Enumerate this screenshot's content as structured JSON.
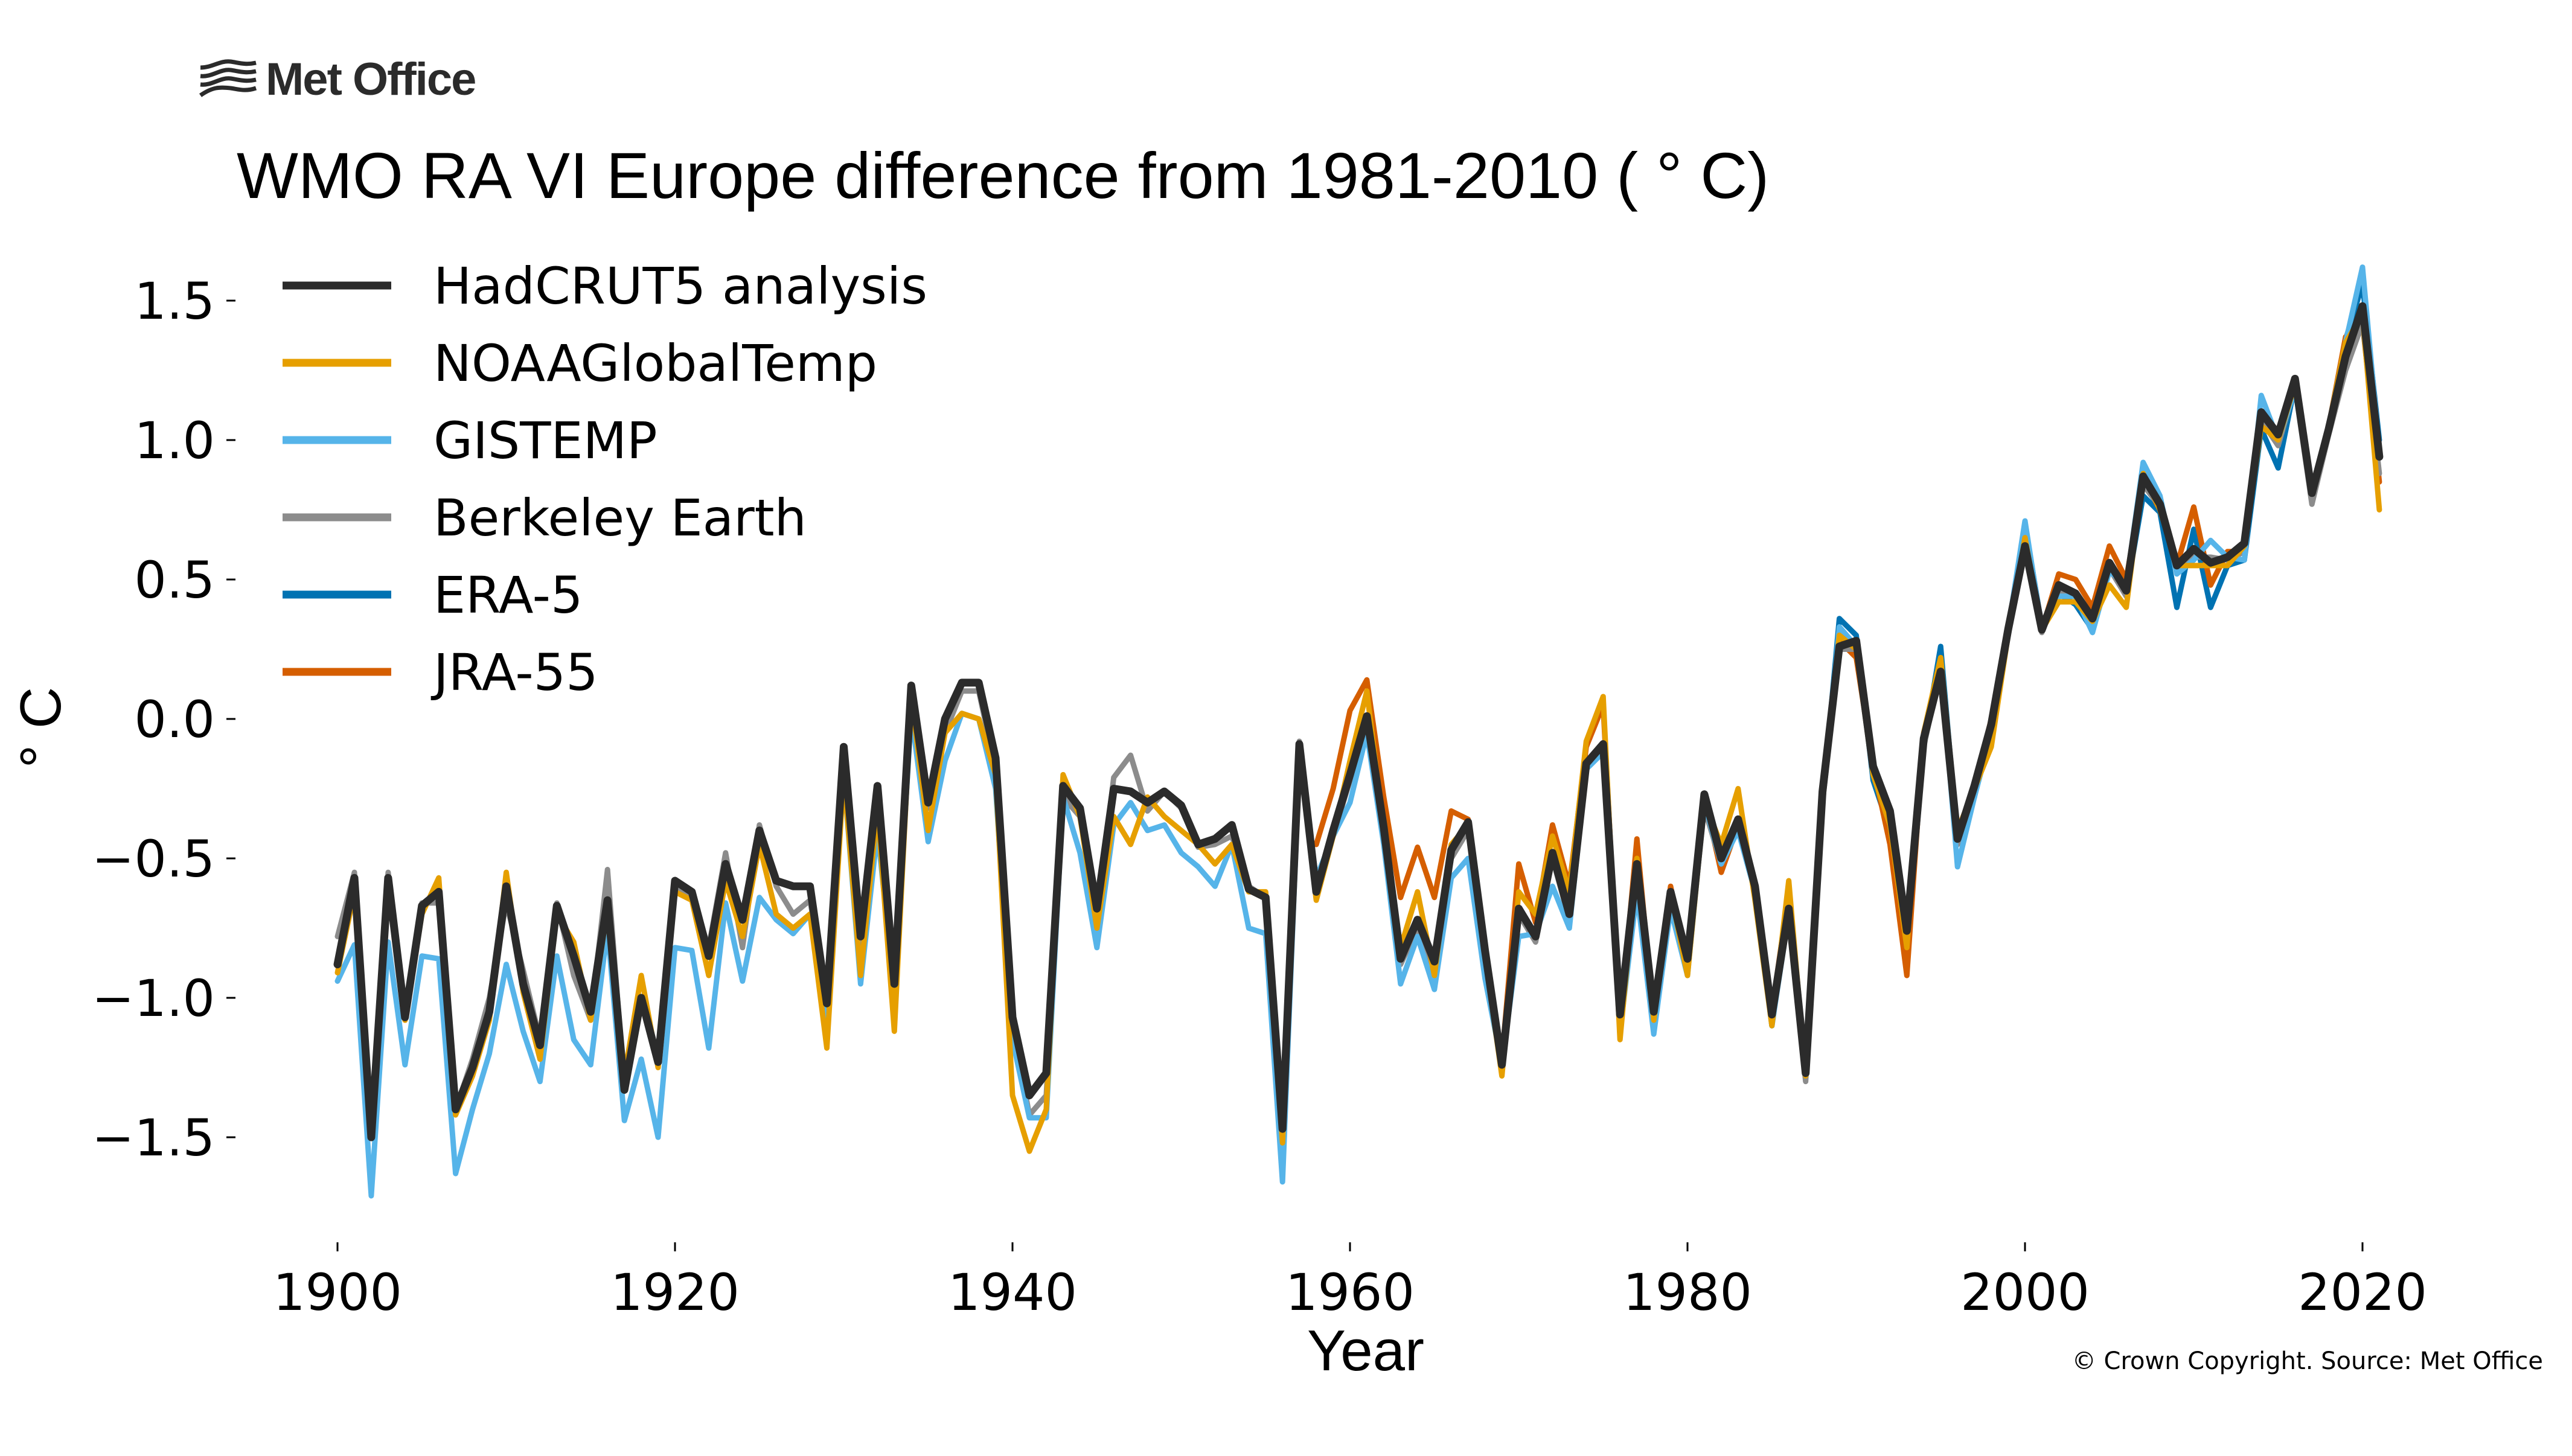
{
  "header": {
    "logo_text": "Met Office",
    "logo_icon": "met-office-waves-icon"
  },
  "footer": {
    "copyright": "© Crown Copyright. Source: Met Office"
  },
  "chart_data": {
    "type": "line",
    "title": "WMO RA VI Europe difference from 1981-2010 ( ° C)",
    "xlabel": "Year",
    "ylabel": "° C",
    "xlim": [
      1894,
      2028
    ],
    "ylim": [
      -1.85,
      1.75
    ],
    "x_ticks": [
      1900,
      1920,
      1940,
      1960,
      1980,
      2000,
      2020
    ],
    "x_tick_labels": [
      "1900",
      "1920",
      "1940",
      "1960",
      "1980",
      "2000",
      "2020"
    ],
    "y_ticks": [
      1.5,
      1.0,
      0.5,
      0.0,
      -0.5,
      -1.0,
      -1.5
    ],
    "y_tick_labels": [
      "1.5",
      "1.0",
      "0.5",
      "0.0",
      "−0.5",
      "−1.0",
      "−1.5"
    ],
    "grid": false,
    "legend_position": "top-left",
    "series": [
      {
        "name": "HadCRUT5 analysis",
        "color": "#2b2b2b",
        "start_year": 1900,
        "values": [
          -0.88,
          -0.57,
          -1.5,
          -0.57,
          -1.07,
          -0.67,
          -0.62,
          -1.4,
          -1.25,
          -1.05,
          -0.6,
          -0.95,
          -1.17,
          -0.67,
          -0.85,
          -1.05,
          -0.65,
          -1.33,
          -1.0,
          -1.23,
          -0.58,
          -0.62,
          -0.85,
          -0.52,
          -0.72,
          -0.4,
          -0.58,
          -0.6,
          -0.6,
          -1.02,
          -0.1,
          -0.78,
          -0.24,
          -0.95,
          0.12,
          -0.3,
          0.0,
          0.13,
          0.13,
          -0.14,
          -1.07,
          -1.35,
          -1.27,
          -0.24,
          -0.32,
          -0.68,
          -0.25,
          -0.26,
          -0.3,
          -0.26,
          -0.31,
          -0.45,
          -0.43,
          -0.38,
          -0.61,
          -0.64,
          -1.47,
          -0.09,
          -0.62,
          -0.4,
          -0.2,
          0.01,
          -0.39,
          -0.86,
          -0.72,
          -0.87,
          -0.47,
          -0.37,
          -0.83,
          -1.24,
          -0.68,
          -0.78,
          -0.48,
          -0.7,
          -0.16,
          -0.09,
          -1.06,
          -0.52,
          -1.05,
          -0.62,
          -0.86,
          -0.27,
          -0.5,
          -0.36,
          -0.6,
          -1.06,
          -0.68,
          -1.27,
          -0.26,
          0.26,
          0.28,
          -0.17,
          -0.33,
          -0.76,
          -0.07,
          0.17,
          -0.43,
          -0.24,
          -0.02,
          0.32,
          0.62,
          0.32,
          0.48,
          0.45,
          0.36,
          0.56,
          0.46,
          0.87,
          0.77,
          0.55,
          0.61,
          0.56,
          0.58,
          0.63,
          1.1,
          1.02,
          1.22,
          0.81,
          1.04,
          1.3,
          1.48,
          0.94
        ]
      },
      {
        "name": "NOAAGlobalTemp",
        "color": "#e69f00",
        "start_year": 1900,
        "values": [
          -0.91,
          -0.62,
          -1.48,
          -0.6,
          -1.08,
          -0.7,
          -0.57,
          -1.42,
          -1.28,
          -1.08,
          -0.55,
          -0.98,
          -1.22,
          -0.7,
          -0.8,
          -1.08,
          -0.68,
          -1.28,
          -0.92,
          -1.25,
          -0.62,
          -0.65,
          -0.92,
          -0.58,
          -0.78,
          -0.45,
          -0.7,
          -0.75,
          -0.7,
          -1.18,
          -0.2,
          -0.92,
          -0.32,
          -1.12,
          0.08,
          -0.4,
          -0.05,
          0.02,
          0.0,
          -0.2,
          -1.35,
          -1.55,
          -1.4,
          -0.2,
          -0.35,
          -0.75,
          -0.35,
          -0.45,
          -0.28,
          -0.35,
          -0.4,
          -0.45,
          -0.52,
          -0.45,
          -0.62,
          -0.62,
          -1.52,
          -0.12,
          -0.65,
          -0.42,
          -0.15,
          0.1,
          -0.4,
          -0.82,
          -0.62,
          -0.92,
          -0.45,
          -0.38,
          -0.85,
          -1.28,
          -0.62,
          -0.7,
          -0.42,
          -0.62,
          -0.08,
          0.08,
          -1.15,
          -0.5,
          -1.08,
          -0.62,
          -0.92,
          -0.3,
          -0.45,
          -0.25,
          -0.65,
          -1.1,
          -0.58,
          -1.28,
          -0.3,
          0.3,
          0.25,
          -0.2,
          -0.38,
          -0.82,
          -0.05,
          0.22,
          -0.4,
          -0.25,
          -0.1,
          0.3,
          0.65,
          0.32,
          0.42,
          0.42,
          0.35,
          0.48,
          0.4,
          0.88,
          0.75,
          0.55,
          0.55,
          0.55,
          0.55,
          0.62,
          1.05,
          1.0,
          1.2,
          0.82,
          1.05,
          1.35,
          1.45,
          0.75
        ]
      },
      {
        "name": "GISTEMP",
        "color": "#56b4e9",
        "start_year": 1900,
        "values": [
          -0.94,
          -0.81,
          -1.71,
          -0.8,
          -1.24,
          -0.85,
          -0.86,
          -1.63,
          -1.4,
          -1.2,
          -0.88,
          -1.12,
          -1.3,
          -0.85,
          -1.15,
          -1.24,
          -0.75,
          -1.44,
          -1.22,
          -1.5,
          -0.82,
          -0.83,
          -1.18,
          -0.66,
          -0.94,
          -0.64,
          -0.72,
          -0.77,
          -0.7,
          -1.08,
          -0.2,
          -0.95,
          -0.4,
          -0.98,
          0.02,
          -0.44,
          -0.15,
          0.02,
          0.0,
          -0.25,
          -1.15,
          -1.43,
          -1.43,
          -0.28,
          -0.48,
          -0.82,
          -0.38,
          -0.3,
          -0.4,
          -0.38,
          -0.48,
          -0.53,
          -0.6,
          -0.45,
          -0.75,
          -0.77,
          -1.66,
          -0.15,
          -0.57,
          -0.42,
          -0.3,
          -0.05,
          -0.45,
          -0.95,
          -0.78,
          -0.97,
          -0.57,
          -0.5,
          -0.93,
          -1.24,
          -0.78,
          -0.77,
          -0.6,
          -0.75,
          -0.18,
          -0.12,
          -1.12,
          -0.62,
          -1.13,
          -0.68,
          -0.92,
          -0.3,
          -0.52,
          -0.4,
          -0.62,
          -1.1,
          -0.7,
          -1.25,
          -0.3,
          0.33,
          0.26,
          -0.2,
          -0.38,
          -0.8,
          -0.06,
          0.2,
          -0.53,
          -0.28,
          -0.05,
          0.32,
          0.71,
          0.32,
          0.44,
          0.44,
          0.31,
          0.53,
          0.48,
          0.92,
          0.8,
          0.52,
          0.57,
          0.64,
          0.58,
          0.57,
          1.16,
          1.0,
          1.18,
          0.82,
          1.05,
          1.35,
          1.62,
          0.96
        ]
      },
      {
        "name": "Berkeley Earth",
        "color": "#8c8c8c",
        "start_year": 1900,
        "values": [
          -0.78,
          -0.55,
          -1.5,
          -0.55,
          -1.08,
          -0.66,
          -0.66,
          -1.4,
          -1.22,
          -1.0,
          -0.66,
          -0.9,
          -1.15,
          -0.66,
          -0.92,
          -1.08,
          -0.54,
          -1.32,
          -1.0,
          -1.22,
          -0.6,
          -0.64,
          -0.82,
          -0.48,
          -0.82,
          -0.38,
          -0.6,
          -0.7,
          -0.65,
          -1.0,
          -0.12,
          -0.85,
          -0.28,
          -0.92,
          0.08,
          -0.32,
          -0.05,
          0.1,
          0.1,
          -0.18,
          -1.1,
          -1.42,
          -1.35,
          -0.28,
          -0.35,
          -0.7,
          -0.21,
          -0.13,
          -0.33,
          -0.26,
          -0.32,
          -0.46,
          -0.45,
          -0.42,
          -0.6,
          -0.64,
          -1.45,
          -0.08,
          -0.6,
          -0.42,
          -0.22,
          -0.02,
          -0.42,
          -0.88,
          -0.75,
          -0.9,
          -0.5,
          -0.4,
          -0.85,
          -1.26,
          -0.7,
          -0.8,
          -0.5,
          -0.72,
          -0.18,
          -0.1,
          -1.08,
          -0.55,
          -1.07,
          -0.65,
          -0.88,
          -0.32,
          -0.52,
          -0.38,
          -0.62,
          -1.08,
          -0.7,
          -1.3,
          -0.3,
          0.25,
          0.25,
          -0.2,
          -0.36,
          -0.78,
          -0.1,
          0.18,
          -0.45,
          -0.27,
          -0.05,
          0.3,
          0.6,
          0.31,
          0.46,
          0.44,
          0.34,
          0.54,
          0.44,
          0.84,
          0.76,
          0.54,
          0.58,
          0.58,
          0.57,
          0.6,
          1.07,
          0.98,
          1.19,
          0.77,
          1.02,
          1.25,
          1.42,
          0.88
        ]
      },
      {
        "name": "ERA-5",
        "color": "#0072b2",
        "start_year": 1979,
        "values": [
          -0.62,
          -0.9,
          -0.27,
          -0.52,
          -0.38,
          -0.6,
          -1.1,
          -0.68,
          -1.25,
          -0.3,
          0.36,
          0.3,
          -0.22,
          -0.4,
          -0.83,
          -0.1,
          0.26,
          -0.43,
          -0.28,
          0.0,
          0.32,
          0.7,
          0.33,
          0.45,
          0.41,
          0.32,
          0.55,
          0.45,
          0.8,
          0.74,
          0.4,
          0.68,
          0.4,
          0.55,
          0.57,
          1.04,
          0.9,
          1.2,
          0.8,
          1.05,
          1.36,
          1.56,
          1.0
        ]
      },
      {
        "name": "JRA-55",
        "color": "#d55e00",
        "start_year": 1958,
        "values": [
          -0.45,
          -0.25,
          0.03,
          0.14,
          -0.28,
          -0.64,
          -0.46,
          -0.64,
          -0.33,
          -0.36,
          -0.82,
          -1.22,
          -0.52,
          -0.73,
          -0.38,
          -0.6,
          -0.1,
          0.05,
          -1.1,
          -0.43,
          -1.08,
          -0.6,
          -0.9,
          -0.28,
          -0.55,
          -0.38,
          -0.62,
          -1.05,
          -0.62,
          -1.25,
          -0.26,
          0.28,
          0.22,
          -0.17,
          -0.45,
          -0.92,
          -0.05,
          0.2,
          -0.4,
          -0.25,
          0.0,
          0.3,
          0.65,
          0.32,
          0.52,
          0.5,
          0.4,
          0.62,
          0.5,
          0.86,
          0.75,
          0.55,
          0.76,
          0.48,
          0.6,
          0.6,
          1.08,
          1.0,
          1.2,
          0.8,
          1.05,
          1.37,
          1.42,
          0.85
        ]
      }
    ]
  }
}
